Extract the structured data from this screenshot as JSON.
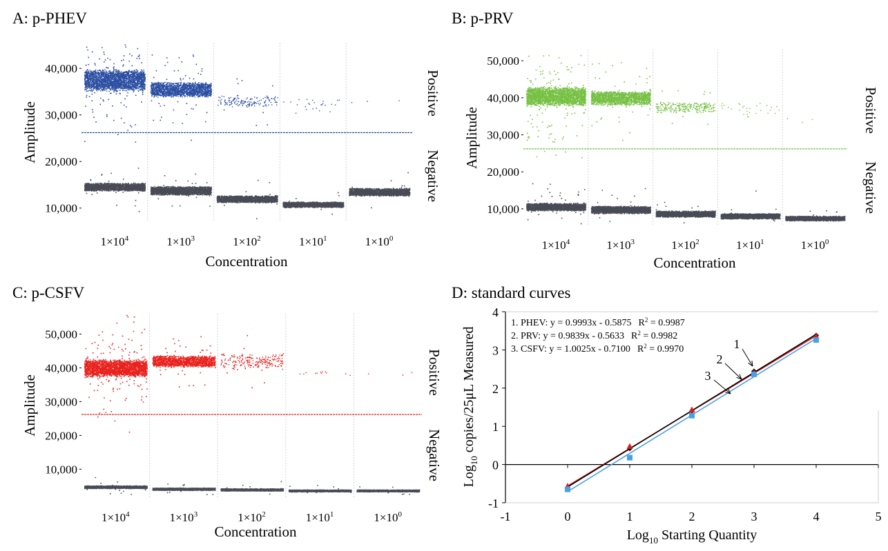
{
  "chart_data": [
    {
      "id": "A",
      "type": "scatter",
      "title": "A: p-PHEV",
      "xlabel": "Concentration",
      "ylabel": "Amplitude",
      "ylim": [
        7000,
        45500
      ],
      "yticks": [
        10000,
        20000,
        30000,
        40000
      ],
      "ytick_labels": [
        "10,000",
        "20,000",
        "30,000",
        "40,000"
      ],
      "categories": [
        "1×10^4",
        "1×10^3",
        "1×10^2",
        "1×10^1",
        "1×10^0"
      ],
      "category_labels": [
        {
          "base": "1×10",
          "exp": "4"
        },
        {
          "base": "1×10",
          "exp": "3"
        },
        {
          "base": "1×10",
          "exp": "2"
        },
        {
          "base": "1×10",
          "exp": "1"
        },
        {
          "base": "1×10",
          "exp": "0"
        }
      ],
      "threshold": 26200,
      "positive_label": "Positive",
      "negative_label": "Negative",
      "positive_color": "#2b4ea2",
      "negative_color": "#474b56",
      "threshold_color": "#2b4ea2",
      "positive_band": [
        {
          "center": 37500,
          "spread": 2400,
          "count": 2600,
          "outliers": 140
        },
        {
          "center": 35500,
          "spread": 1700,
          "count": 1800,
          "outliers": 60
        },
        {
          "center": 33000,
          "spread": 1300,
          "count": 150,
          "outliers": 10
        },
        {
          "center": 32500,
          "spread": 2200,
          "count": 25,
          "outliers": 0
        },
        {
          "center": 33000,
          "spread": 500,
          "count": 3,
          "outliers": 0
        }
      ],
      "negative_band": [
        {
          "center": 14600,
          "spread": 900,
          "count": 2200,
          "outliers": 30
        },
        {
          "center": 13800,
          "spread": 1000,
          "count": 2200,
          "outliers": 20
        },
        {
          "center": 12000,
          "spread": 800,
          "count": 2200,
          "outliers": 10
        },
        {
          "center": 10800,
          "spread": 650,
          "count": 2200,
          "outliers": 10
        },
        {
          "center": 13500,
          "spread": 900,
          "count": 2200,
          "outliers": 10
        }
      ]
    },
    {
      "id": "B",
      "type": "scatter",
      "title": "B: p-PRV",
      "xlabel": "Concentration",
      "ylabel": "Amplitude",
      "ylim": [
        5500,
        53000
      ],
      "yticks": [
        10000,
        20000,
        30000,
        40000,
        50000
      ],
      "ytick_labels": [
        "10,000",
        "20,000",
        "30,000",
        "40,000",
        "50,000"
      ],
      "categories": [
        "1×10^4",
        "1×10^3",
        "1×10^2",
        "1×10^1",
        "1×10^0"
      ],
      "category_labels": [
        {
          "base": "1×10",
          "exp": "4"
        },
        {
          "base": "1×10",
          "exp": "3"
        },
        {
          "base": "1×10",
          "exp": "2"
        },
        {
          "base": "1×10",
          "exp": "1"
        },
        {
          "base": "1×10",
          "exp": "0"
        }
      ],
      "threshold": 26200,
      "positive_label": "Positive",
      "negative_label": "Negative",
      "positive_color": "#76c043",
      "negative_color": "#474b56",
      "threshold_color": "#76c043",
      "positive_band": [
        {
          "center": 40500,
          "spread": 2600,
          "count": 2600,
          "outliers": 160
        },
        {
          "center": 40000,
          "spread": 2000,
          "count": 1700,
          "outliers": 50
        },
        {
          "center": 37500,
          "spread": 1500,
          "count": 260,
          "outliers": 12
        },
        {
          "center": 37000,
          "spread": 2500,
          "count": 30,
          "outliers": 0
        },
        {
          "center": 34500,
          "spread": 1500,
          "count": 3,
          "outliers": 0
        }
      ],
      "negative_band": [
        {
          "center": 10600,
          "spread": 1100,
          "count": 2200,
          "outliers": 40
        },
        {
          "center": 9800,
          "spread": 1100,
          "count": 2200,
          "outliers": 20
        },
        {
          "center": 8700,
          "spread": 900,
          "count": 2200,
          "outliers": 10
        },
        {
          "center": 8100,
          "spread": 800,
          "count": 2200,
          "outliers": 10
        },
        {
          "center": 7500,
          "spread": 700,
          "count": 2200,
          "outliers": 10
        }
      ]
    },
    {
      "id": "C",
      "type": "scatter",
      "title": "C: p-CSFV",
      "xlabel": "Concentration",
      "ylabel": "Amplitude",
      "ylim": [
        1500,
        56000
      ],
      "yticks": [
        10000,
        20000,
        30000,
        40000,
        50000
      ],
      "ytick_labels": [
        "10,000",
        "20,000",
        "30,000",
        "40,000",
        "50,000"
      ],
      "categories": [
        "1×10^4",
        "1×10^3",
        "1×10^2",
        "1×10^1",
        "1×10^0"
      ],
      "category_labels": [
        {
          "base": "1×10",
          "exp": "4"
        },
        {
          "base": "1×10",
          "exp": "3"
        },
        {
          "base": "1×10",
          "exp": "2"
        },
        {
          "base": "1×10",
          "exp": "1"
        },
        {
          "base": "1×10",
          "exp": "0"
        }
      ],
      "threshold": 26200,
      "positive_label": "Positive",
      "negative_label": "Negative",
      "positive_color": "#e8211d",
      "negative_color": "#474b56",
      "threshold_color": "#e8211d",
      "positive_band": [
        {
          "center": 40000,
          "spread": 2700,
          "count": 2600,
          "outliers": 150
        },
        {
          "center": 42000,
          "spread": 1800,
          "count": 1600,
          "outliers": 40
        },
        {
          "center": 42000,
          "spread": 2500,
          "count": 220,
          "outliers": 10
        },
        {
          "center": 38500,
          "spread": 600,
          "count": 12,
          "outliers": 0
        },
        {
          "center": 38500,
          "spread": 600,
          "count": 3,
          "outliers": 0
        }
      ],
      "negative_band": [
        {
          "center": 4800,
          "spread": 450,
          "count": 2200,
          "outliers": 20
        },
        {
          "center": 4200,
          "spread": 400,
          "count": 2200,
          "outliers": 15
        },
        {
          "center": 4000,
          "spread": 400,
          "count": 2200,
          "outliers": 10
        },
        {
          "center": 3700,
          "spread": 350,
          "count": 2200,
          "outliers": 10
        },
        {
          "center": 3700,
          "spread": 350,
          "count": 2200,
          "outliers": 10
        }
      ]
    },
    {
      "id": "D",
      "type": "scatter",
      "title": "D: standard curves",
      "xlabel": {
        "prefix": "Log",
        "sub": "10",
        "suffix": " Starting Quantity"
      },
      "ylabel": {
        "prefix": "Log",
        "sub": "10",
        "suffix": " copies/25μL Measured"
      },
      "xlim": [
        -1,
        5
      ],
      "ylim": [
        -1,
        4
      ],
      "xticks": [
        -1,
        0,
        1,
        2,
        3,
        4,
        5
      ],
      "yticks": [
        -1,
        0,
        1,
        2,
        3,
        4
      ],
      "equations": [
        {
          "text": "1. PHEV: y = 0.9993x - 0.5875",
          "r2": "0.9987"
        },
        {
          "text": "2. PRV: y = 0.9839x - 0.5633",
          "r2": "0.9982"
        },
        {
          "text": "3. CSFV: y = 1.0025x - 0.7100",
          "r2": "0.9970"
        }
      ],
      "r2_prefix": "R",
      "r2_exp": "2",
      "r2_suffix": " = ",
      "series": [
        {
          "name": "PHEV",
          "slope": 0.9993,
          "intercept": -0.5875,
          "color": "#000000",
          "points": [
            [
              0,
              -0.6
            ],
            [
              1,
              0.42
            ],
            [
              2,
              1.4
            ],
            [
              3,
              2.44
            ],
            [
              4,
              3.38
            ]
          ]
        },
        {
          "name": "PRV",
          "slope": 0.9839,
          "intercept": -0.5633,
          "color": "#d42020",
          "points": [
            [
              0,
              -0.57
            ],
            [
              1,
              0.47
            ],
            [
              2,
              1.43
            ],
            [
              3,
              2.4
            ],
            [
              4,
              3.36
            ]
          ]
        },
        {
          "name": "CSFV",
          "slope": 1.0025,
          "intercept": -0.71,
          "color": "#4aa0e6",
          "points": [
            [
              0,
              -0.65
            ],
            [
              1,
              0.18
            ],
            [
              2,
              1.28
            ],
            [
              3,
              2.36
            ],
            [
              4,
              3.26
            ]
          ]
        }
      ],
      "annotations": [
        "1",
        "2",
        "3"
      ]
    }
  ]
}
